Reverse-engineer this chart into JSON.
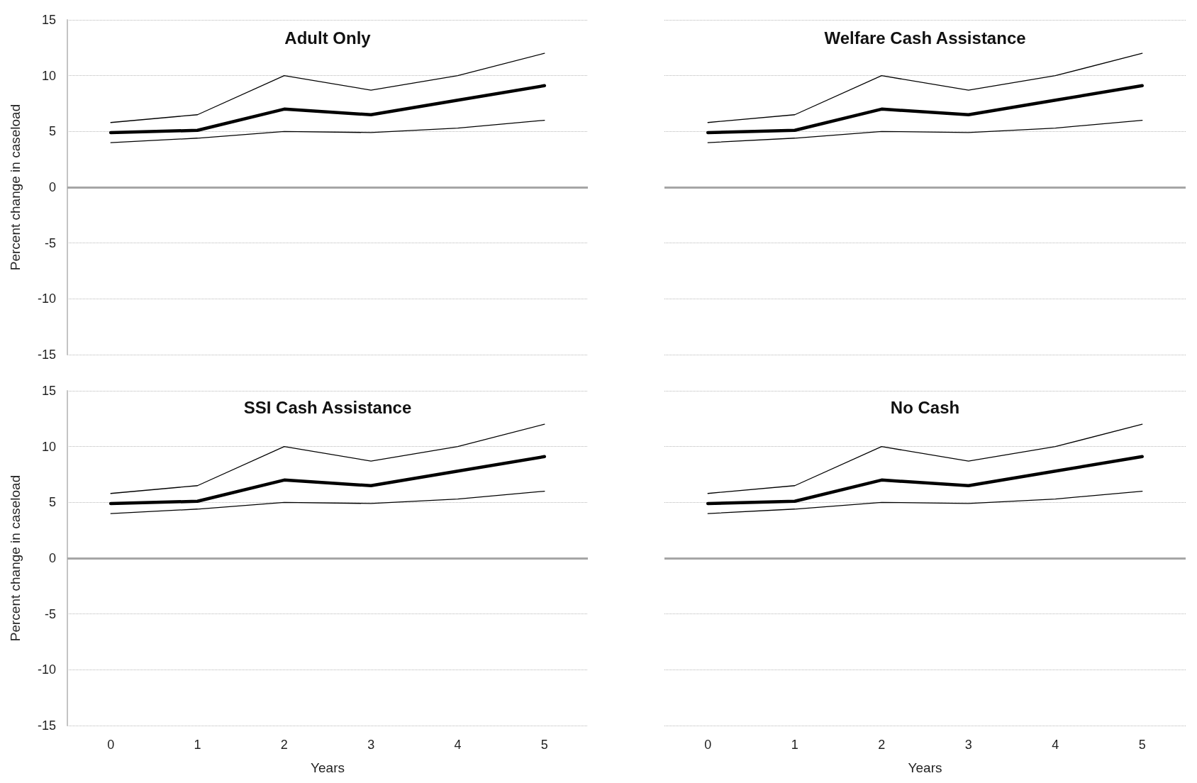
{
  "chart_data": [
    {
      "type": "line",
      "title": "Adult Only",
      "ylabel": "Percent change in caseload",
      "categories": [
        "0",
        "1",
        "2",
        "3",
        "4",
        "5"
      ],
      "series": [
        {
          "color": "#000000",
          "values": [
            5.8,
            6.5,
            10,
            8.7,
            10,
            12
          ]
        },
        {
          "color": "#000000",
          "values": [
            4.9,
            5.1,
            7.0,
            6.5,
            7.8,
            9.1
          ]
        },
        {
          "color": "#000000",
          "values": [
            4.0,
            4.4,
            5.0,
            4.9,
            5.3,
            6.0
          ]
        }
      ],
      "ylim": [
        -15,
        15
      ],
      "yticks": [
        -15,
        -10,
        -5,
        0,
        5,
        10,
        15
      ],
      "grid": "y",
      "tick_labels": "y",
      "ref_lines": [
        {
          "axis": "y",
          "value": 0,
          "color": "#a6a6a6"
        }
      ]
    },
    {
      "type": "line",
      "title": "Welfare Cash Assistance",
      "categories": [
        "0",
        "1",
        "2",
        "3",
        "4",
        "5"
      ],
      "series": [
        {
          "color": "#000000",
          "values": [
            5.8,
            6.5,
            10,
            8.7,
            10,
            12
          ]
        },
        {
          "color": "#000000",
          "values": [
            4.9,
            5.1,
            7.0,
            6.5,
            7.8,
            9.1
          ]
        },
        {
          "color": "#000000",
          "values": [
            4.0,
            4.4,
            5.0,
            4.9,
            5.3,
            6.0
          ]
        }
      ],
      "ylim": [
        -15,
        15
      ],
      "yticks": [
        -15,
        -10,
        -5,
        0,
        5,
        10,
        15
      ],
      "grid": "y",
      "tick_labels": false,
      "ref_lines": [
        {
          "axis": "y",
          "value": 0,
          "color": "#a6a6a6"
        }
      ]
    },
    {
      "type": "line",
      "title": "SSI Cash Assistance",
      "xlabel": "Years",
      "ylabel": "Percent change in caseload",
      "categories": [
        "0",
        "1",
        "2",
        "3",
        "4",
        "5"
      ],
      "series": [
        {
          "color": "#000000",
          "values": [
            5.8,
            6.5,
            10,
            8.7,
            10,
            12
          ]
        },
        {
          "color": "#000000",
          "values": [
            4.9,
            5.1,
            7.0,
            6.5,
            7.8,
            9.1
          ]
        },
        {
          "color": "#000000",
          "values": [
            4.0,
            4.4,
            5.0,
            4.9,
            5.3,
            6.0
          ]
        }
      ],
      "ylim": [
        -15,
        15
      ],
      "yticks": [
        -15,
        -10,
        -5,
        0,
        5,
        10,
        15
      ],
      "grid": "y",
      "ref_lines": [
        {
          "axis": "y",
          "value": 0,
          "color": "#a6a6a6"
        }
      ]
    },
    {
      "type": "line",
      "title": "No Cash",
      "xlabel": "Years",
      "categories": [
        "0",
        "1",
        "2",
        "3",
        "4",
        "5"
      ],
      "series": [
        {
          "color": "#000000",
          "values": [
            5.8,
            6.5,
            10,
            8.7,
            10,
            12
          ]
        },
        {
          "color": "#000000",
          "values": [
            4.9,
            5.1,
            7.0,
            6.5,
            7.8,
            9.1
          ]
        },
        {
          "color": "#000000",
          "values": [
            4.0,
            4.4,
            5.0,
            4.9,
            5.3,
            6.0
          ]
        }
      ],
      "ylim": [
        -15,
        15
      ],
      "yticks": [
        -15,
        -10,
        -5,
        0,
        5,
        10,
        15
      ],
      "grid": "y",
      "tick_labels": "x",
      "ref_lines": [
        {
          "axis": "y",
          "value": 0,
          "color": "#a6a6a6"
        }
      ]
    }
  ]
}
